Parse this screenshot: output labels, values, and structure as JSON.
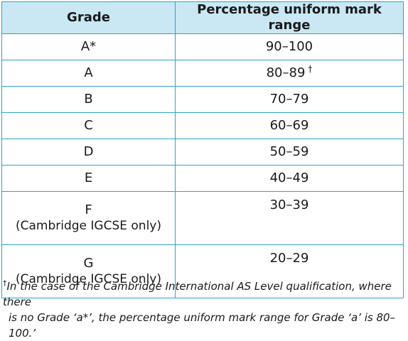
{
  "table": {
    "headers": [
      "Grade",
      "Percentage uniform mark range"
    ],
    "rows": [
      {
        "grade": "A*",
        "note": "",
        "range": "90–100",
        "dagger": ""
      },
      {
        "grade": "A",
        "note": "",
        "range": "80–89",
        "dagger": "†"
      },
      {
        "grade": "B",
        "note": "",
        "range": "70–79",
        "dagger": ""
      },
      {
        "grade": "C",
        "note": "",
        "range": "60–69",
        "dagger": ""
      },
      {
        "grade": "D",
        "note": "",
        "range": "50–59",
        "dagger": ""
      },
      {
        "grade": "E",
        "note": "",
        "range": "40–49",
        "dagger": ""
      },
      {
        "grade": "F",
        "note": "(Cambridge IGCSE only)",
        "range": "30–39",
        "dagger": ""
      },
      {
        "grade": "G",
        "note": "(Cambridge IGCSE only)",
        "range": "20–29",
        "dagger": ""
      }
    ]
  },
  "footnote": {
    "symbol": "†",
    "line1": "In the case of the Cambridge International AS Level qualification, where there",
    "line2": "is no Grade ‘a*’, the percentage uniform mark range for Grade ‘a’ is 80–100.’"
  },
  "colors": {
    "border": "#2ea3c9",
    "header_background": "#c9e8f3"
  }
}
